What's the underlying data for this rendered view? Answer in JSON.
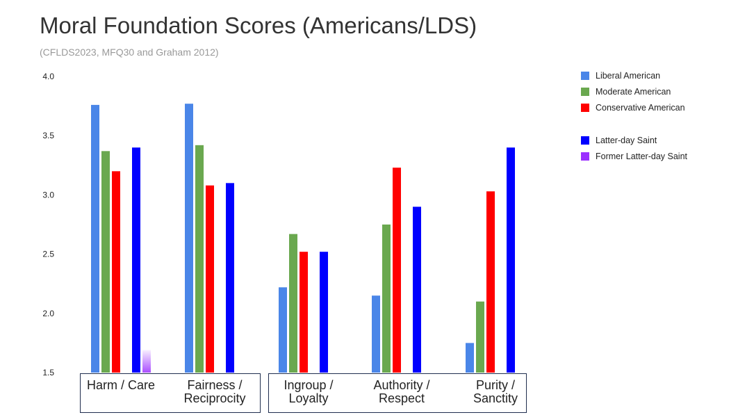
{
  "chart_data": {
    "type": "bar",
    "title": "Moral Foundation Scores (Americans/LDS)",
    "subtitle": "(CFLDS2023, MFQ30 and Graham 2012)",
    "categories": [
      "Harm / Care",
      "Fairness / Reciprocity",
      "Ingroup / Loyalty",
      "Authority / Respect",
      "Purity / Sanctity"
    ],
    "category_lines": [
      [
        "Harm / Care"
      ],
      [
        "Fairness /",
        "Reciprocity"
      ],
      [
        "Ingroup /",
        "Loyalty"
      ],
      [
        "Authority /",
        "Respect"
      ],
      [
        "Purity /",
        "Sanctity"
      ]
    ],
    "ylim": [
      1.5,
      4.0
    ],
    "yticks": [
      "1.5",
      "2.0",
      "2.5",
      "3.0",
      "3.5",
      "4.0"
    ],
    "grid": false,
    "legend_position": "right",
    "series": [
      {
        "name": "Liberal American",
        "color": "#4a86e8",
        "values": [
          3.76,
          3.77,
          2.22,
          2.15,
          1.75
        ]
      },
      {
        "name": "Moderate American",
        "color": "#6aa84f",
        "values": [
          3.37,
          3.42,
          2.67,
          2.75,
          2.1
        ]
      },
      {
        "name": "Conservative American",
        "color": "#ff0000",
        "values": [
          3.2,
          3.08,
          2.52,
          3.23,
          3.03
        ]
      },
      {
        "name": "Latter-day Saint",
        "color": "#0000ff",
        "values": [
          3.4,
          3.1,
          2.52,
          2.9,
          3.4
        ]
      },
      {
        "name": "Former Latter-day Saint",
        "color": "#9b30ff",
        "values": [
          1.69,
          null,
          null,
          null,
          null
        ],
        "faded": true
      }
    ]
  }
}
